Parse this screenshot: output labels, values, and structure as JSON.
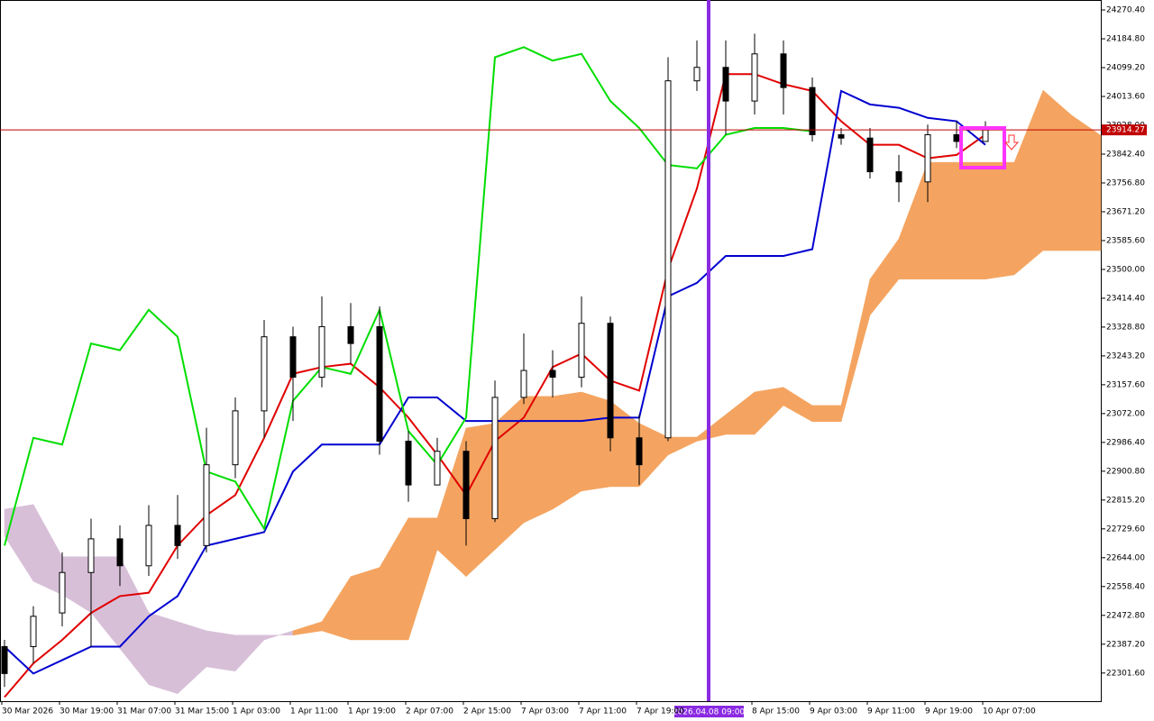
{
  "chart_data": {
    "type": "candlestick",
    "ylim": [
      22218,
      24300
    ],
    "yticks": [
      {
        "value": 24270.4,
        "label": "24270.40"
      },
      {
        "value": 24184.8,
        "label": "24184.80"
      },
      {
        "value": 24099.2,
        "label": "24099.20"
      },
      {
        "value": 24013.6,
        "label": "24013.60"
      },
      {
        "value": 23928,
        "label": "23928.00"
      },
      {
        "value": 23842.4,
        "label": "23842.40"
      },
      {
        "value": 23756.8,
        "label": "23756.80"
      },
      {
        "value": 23671.2,
        "label": "23671.20"
      },
      {
        "value": 23585.6,
        "label": "23585.60"
      },
      {
        "value": 23500,
        "label": "23500.00"
      },
      {
        "value": 23414.4,
        "label": "23414.40"
      },
      {
        "value": 23328.8,
        "label": "23328.80"
      },
      {
        "value": 23243.2,
        "label": "23243.20"
      },
      {
        "value": 23157.6,
        "label": "23157.60"
      },
      {
        "value": 23072,
        "label": "23072.00"
      },
      {
        "value": 22986.4,
        "label": "22986.40"
      },
      {
        "value": 22900.8,
        "label": "22900.80"
      },
      {
        "value": 22815.2,
        "label": "22815.20"
      },
      {
        "value": 22729.6,
        "label": "22729.60"
      },
      {
        "value": 22644,
        "label": "22644.00"
      },
      {
        "value": 22558.4,
        "label": "22558.40"
      },
      {
        "value": 22472.8,
        "label": "22472.80"
      },
      {
        "value": 22387.2,
        "label": "22387.20"
      },
      {
        "value": 22301.6,
        "label": "22301.60"
      }
    ],
    "xlabels": [
      "30 Mar 2026",
      "30 Mar 19:00",
      "31 Mar 07:00",
      "31 Mar 15:00",
      "1 Apr 03:00",
      "1 Apr 11:00",
      "1 Apr 19:00",
      "2 Apr 07:00",
      "2 Apr 15:00",
      "7 Apr 03:00",
      "7 Apr 11:00",
      "7 Apr 19:00",
      null,
      "8 Apr 15:00",
      "9 Apr 03:00",
      "9 Apr 11:00",
      "9 Apr 19:00",
      "10 Apr 07:00"
    ],
    "cursor_label": "2026.04.08 09:00",
    "current_price": 23914.27,
    "candles": [
      {
        "open": 22380,
        "high": 22400,
        "low": 22260,
        "close": 22300
      },
      {
        "open": 22380,
        "high": 22500,
        "low": 22330,
        "close": 22470
      },
      {
        "open": 22480,
        "high": 22660,
        "low": 22440,
        "close": 22600
      },
      {
        "open": 22600,
        "high": 22760,
        "low": 22380,
        "close": 22700
      },
      {
        "open": 22700,
        "high": 22740,
        "low": 22560,
        "close": 22620
      },
      {
        "open": 22620,
        "high": 22800,
        "low": 22590,
        "close": 22740
      },
      {
        "open": 22740,
        "high": 22830,
        "low": 22640,
        "close": 22680
      },
      {
        "open": 22680,
        "high": 23030,
        "low": 22660,
        "close": 22920
      },
      {
        "open": 22920,
        "high": 23120,
        "low": 22880,
        "close": 23080
      },
      {
        "open": 23080,
        "high": 23350,
        "low": 23000,
        "close": 23300
      },
      {
        "open": 23300,
        "high": 23330,
        "low": 23050,
        "close": 23180
      },
      {
        "open": 23180,
        "high": 23420,
        "low": 23150,
        "close": 23330
      },
      {
        "open": 23330,
        "high": 23400,
        "low": 23220,
        "close": 23280
      },
      {
        "open": 23330,
        "high": 23390,
        "low": 22950,
        "close": 22990
      },
      {
        "open": 22990,
        "high": 23020,
        "low": 22810,
        "close": 22860
      },
      {
        "open": 22860,
        "high": 23000,
        "low": 22870,
        "close": 22960
      },
      {
        "open": 22960,
        "high": 22990,
        "low": 22680,
        "close": 22760
      },
      {
        "open": 22760,
        "high": 23170,
        "low": 22750,
        "close": 23120
      },
      {
        "open": 23120,
        "high": 23310,
        "low": 23100,
        "close": 23200
      },
      {
        "open": 23200,
        "high": 23260,
        "low": 23120,
        "close": 23180
      },
      {
        "open": 23180,
        "high": 23420,
        "low": 23150,
        "close": 23340
      },
      {
        "open": 23340,
        "high": 23360,
        "low": 22960,
        "close": 23000
      },
      {
        "open": 23000,
        "high": 23070,
        "low": 22860,
        "close": 22920
      },
      {
        "open": 23000,
        "high": 24130,
        "low": 22990,
        "close": 24060
      },
      {
        "open": 24060,
        "high": 24180,
        "low": 24030,
        "close": 24100
      },
      {
        "open": 24100,
        "high": 24180,
        "low": 23900,
        "close": 24000
      },
      {
        "open": 24000,
        "high": 24200,
        "low": 23960,
        "close": 24140
      },
      {
        "open": 24140,
        "high": 24180,
        "low": 23960,
        "close": 24040
      },
      {
        "open": 24040,
        "high": 24070,
        "low": 23880,
        "close": 23900
      },
      {
        "open": 23900,
        "high": 23920,
        "low": 23870,
        "close": 23890
      },
      {
        "open": 23890,
        "high": 23920,
        "low": 23770,
        "close": 23790
      },
      {
        "open": 23790,
        "high": 23840,
        "low": 23700,
        "close": 23760
      },
      {
        "open": 23760,
        "high": 23930,
        "low": 23700,
        "close": 23900
      },
      {
        "open": 23900,
        "high": 23940,
        "low": 23860,
        "close": 23880
      },
      {
        "open": 23880,
        "high": 23940,
        "low": 23880,
        "close": 23914.27
      }
    ],
    "lines": [
      {
        "color": "#e00000",
        "values": [
          22230,
          22330,
          22400,
          22480,
          22530,
          22540,
          22680,
          22770,
          22830,
          23000,
          23190,
          23210,
          23220,
          23150,
          23060,
          22950,
          22830,
          22990,
          23060,
          23210,
          23250,
          23170,
          23140,
          23500,
          23740,
          24080,
          24080,
          24050,
          24030,
          23940,
          23870,
          23870,
          23830,
          23840,
          23900
        ]
      },
      {
        "color": "#0000d0",
        "values": [
          22380,
          22300,
          22340,
          22380,
          22380,
          22470,
          22530,
          22680,
          22700,
          22720,
          22900,
          22980,
          22980,
          22980,
          23120,
          23120,
          23050,
          23050,
          23050,
          23050,
          23050,
          23060,
          23060,
          23420,
          23460,
          23540,
          23540,
          23540,
          23560,
          24030,
          23990,
          23980,
          23950,
          23940,
          23870
        ]
      },
      {
        "color": "#00dd00",
        "values": [
          22680,
          23000,
          22980,
          23280,
          23260,
          23380,
          23300,
          22900,
          22870,
          22730,
          23110,
          23210,
          23190,
          23380,
          23020,
          22920,
          23060,
          24130,
          24160,
          24120,
          24140,
          24000,
          23920,
          23810,
          23800,
          23900,
          23920,
          23920,
          23910
        ]
      }
    ],
    "cloud": {
      "up_color": "#f4a460",
      "down_color": "#d8bfd8",
      "span_a": [
        22708,
        22574,
        22534,
        22481,
        22374,
        22267,
        22240,
        22320,
        22307,
        22400,
        22427,
        22454,
        22588,
        22615,
        22762,
        22762,
        23029,
        23043,
        23123,
        23123,
        23136,
        23109,
        23043,
        23002,
        23002,
        23069,
        23136,
        23150,
        23096,
        23096,
        23471,
        23591,
        23818,
        23818,
        23818,
        23818,
        24032,
        23957,
        23898
      ],
      "span_b": [
        22788,
        22802,
        22647,
        22647,
        22647,
        22481,
        22454,
        22427,
        22414,
        22414,
        22414,
        22427,
        22400,
        22400,
        22400,
        22668,
        22588,
        22668,
        22748,
        22788,
        22842,
        22855,
        22855,
        22949,
        22990,
        23010,
        23010,
        23096,
        23048,
        23048,
        23364,
        23471,
        23471,
        23471,
        23471,
        23484,
        23556,
        23556,
        23556
      ]
    }
  }
}
